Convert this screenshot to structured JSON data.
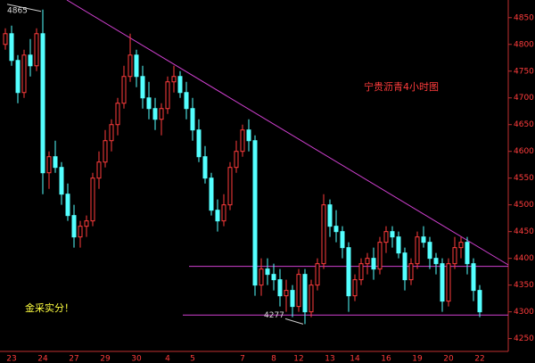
{
  "chart_data": {
    "type": "candlestick",
    "title": "宁贵沥青4小时图",
    "caption": "金采实分！",
    "annotations": [
      {
        "text": "4865",
        "index": 6
      },
      {
        "text": "4277",
        "index": 48
      }
    ],
    "categories": [
      null,
      "23",
      null,
      null,
      null,
      null,
      "24",
      null,
      null,
      null,
      null,
      "27",
      null,
      null,
      null,
      null,
      "29",
      null,
      null,
      null,
      null,
      "30",
      null,
      null,
      null,
      null,
      "4",
      null,
      null,
      null,
      "5",
      null,
      null,
      null,
      null,
      null,
      null,
      null,
      "7",
      null,
      null,
      null,
      null,
      "8",
      null,
      null,
      null,
      "12",
      null,
      null,
      null,
      null,
      "13",
      null,
      null,
      null,
      "14",
      null,
      null,
      null,
      null,
      "16",
      null,
      null,
      null,
      null,
      "19",
      null,
      null,
      null,
      null,
      "20",
      null,
      null,
      null,
      null,
      "22"
    ],
    "ohlc": [
      [
        4800,
        4830,
        4790,
        4820
      ],
      [
        4820,
        4835,
        4760,
        4770
      ],
      [
        4770,
        4780,
        4690,
        4710
      ],
      [
        4710,
        4790,
        4700,
        4780
      ],
      [
        4780,
        4810,
        4740,
        4760
      ],
      [
        4760,
        4830,
        4750,
        4820
      ],
      [
        4820,
        4865,
        4520,
        4560
      ],
      [
        4560,
        4600,
        4530,
        4590
      ],
      [
        4590,
        4620,
        4560,
        4570
      ],
      [
        4570,
        4580,
        4500,
        4520
      ],
      [
        4520,
        4540,
        4470,
        4480
      ],
      [
        4480,
        4500,
        4420,
        4440
      ],
      [
        4440,
        4470,
        4420,
        4460
      ],
      [
        4460,
        4480,
        4440,
        4470
      ],
      [
        4470,
        4560,
        4460,
        4550
      ],
      [
        4550,
        4600,
        4530,
        4580
      ],
      [
        4580,
        4640,
        4570,
        4620
      ],
      [
        4620,
        4660,
        4600,
        4650
      ],
      [
        4650,
        4700,
        4630,
        4690
      ],
      [
        4690,
        4760,
        4680,
        4740
      ],
      [
        4740,
        4820,
        4730,
        4780
      ],
      [
        4780,
        4790,
        4720,
        4740
      ],
      [
        4740,
        4760,
        4680,
        4700
      ],
      [
        4700,
        4730,
        4660,
        4680
      ],
      [
        4680,
        4700,
        4640,
        4660
      ],
      [
        4660,
        4690,
        4630,
        4680
      ],
      [
        4680,
        4740,
        4670,
        4730
      ],
      [
        4730,
        4760,
        4710,
        4740
      ],
      [
        4740,
        4750,
        4700,
        4710
      ],
      [
        4710,
        4730,
        4660,
        4680
      ],
      [
        4680,
        4700,
        4620,
        4640
      ],
      [
        4640,
        4660,
        4580,
        4590
      ],
      [
        4590,
        4610,
        4540,
        4550
      ],
      [
        4550,
        4560,
        4480,
        4490
      ],
      [
        4490,
        4510,
        4450,
        4470
      ],
      [
        4470,
        4520,
        4460,
        4500
      ],
      [
        4500,
        4580,
        4490,
        4570
      ],
      [
        4570,
        4620,
        4560,
        4600
      ],
      [
        4600,
        4650,
        4590,
        4640
      ],
      [
        4640,
        4660,
        4600,
        4620
      ],
      [
        4620,
        4630,
        4330,
        4350
      ],
      [
        4350,
        4400,
        4330,
        4380
      ],
      [
        4380,
        4400,
        4350,
        4370
      ],
      [
        4370,
        4390,
        4340,
        4360
      ],
      [
        4360,
        4380,
        4310,
        4330
      ],
      [
        4330,
        4360,
        4300,
        4340
      ],
      [
        4340,
        4350,
        4290,
        4310
      ],
      [
        4310,
        4380,
        4300,
        4370
      ],
      [
        4370,
        4380,
        4277,
        4300
      ],
      [
        4300,
        4360,
        4290,
        4350
      ],
      [
        4350,
        4400,
        4340,
        4390
      ],
      [
        4390,
        4520,
        4380,
        4500
      ],
      [
        4500,
        4510,
        4440,
        4460
      ],
      [
        4460,
        4490,
        4430,
        4450
      ],
      [
        4450,
        4460,
        4400,
        4420
      ],
      [
        4420,
        4430,
        4300,
        4330
      ],
      [
        4330,
        4370,
        4320,
        4360
      ],
      [
        4360,
        4400,
        4350,
        4390
      ],
      [
        4390,
        4410,
        4370,
        4400
      ],
      [
        4400,
        4420,
        4360,
        4380
      ],
      [
        4380,
        4440,
        4370,
        4430
      ],
      [
        4430,
        4460,
        4410,
        4450
      ],
      [
        4450,
        4460,
        4420,
        4440
      ],
      [
        4440,
        4450,
        4400,
        4410
      ],
      [
        4410,
        4420,
        4340,
        4360
      ],
      [
        4360,
        4400,
        4350,
        4390
      ],
      [
        4390,
        4450,
        4380,
        4440
      ],
      [
        4440,
        4460,
        4420,
        4430
      ],
      [
        4430,
        4440,
        4380,
        4400
      ],
      [
        4400,
        4410,
        4370,
        4390
      ],
      [
        4390,
        4400,
        4300,
        4320
      ],
      [
        4320,
        4400,
        4310,
        4390
      ],
      [
        4390,
        4440,
        4380,
        4420
      ],
      [
        4420,
        4440,
        4400,
        4430
      ],
      [
        4430,
        4440,
        4370,
        4390
      ],
      [
        4390,
        4400,
        4320,
        4340
      ],
      [
        4340,
        4350,
        4290,
        4300
      ]
    ],
    "up_color": "#ff3c3c",
    "down_color": "#54ffff",
    "line_color": "#d040d0",
    "levels": [
      4385,
      4294
    ],
    "ylim": [
      4226,
      4883
    ],
    "yticks": [
      4250,
      4300,
      4350,
      4400,
      4450,
      4500,
      4550,
      4600,
      4650,
      4700,
      4750,
      4800,
      4850
    ]
  }
}
